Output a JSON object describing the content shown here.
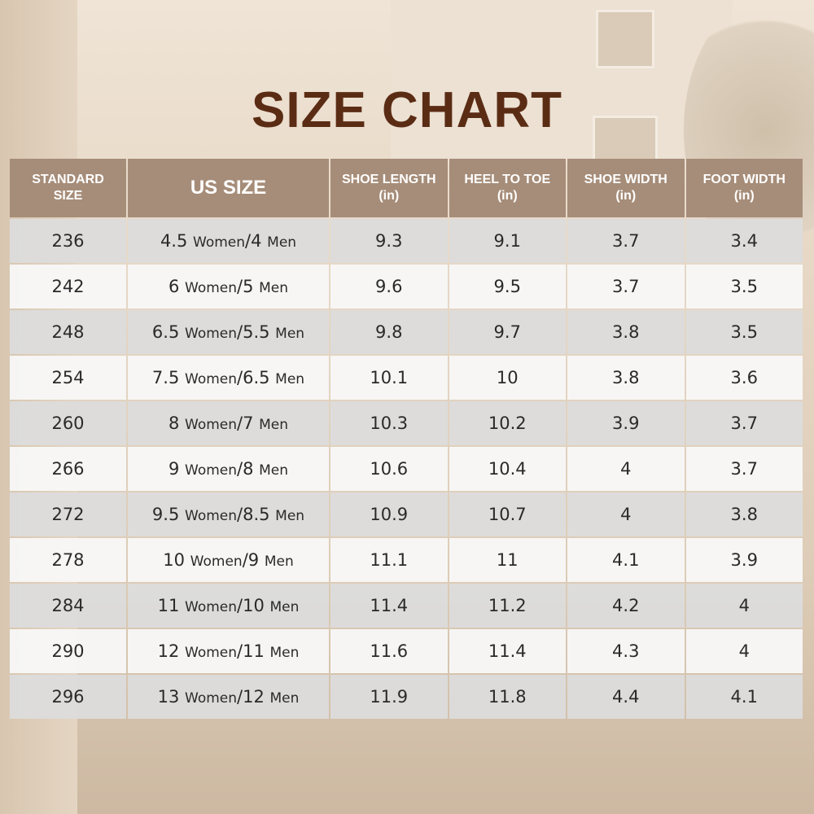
{
  "title": "SIZE CHART",
  "table": {
    "headers": [
      "STANDARD\nSIZE",
      "US SIZE",
      "SHOE LENGTH\n(in)",
      "HEEL TO TOE\n(in)",
      "SHOE WIDTH\n(in)",
      "FOOT WIDTH\n(in)"
    ],
    "rows": [
      [
        236,
        "4.5 Women/4 Men",
        9.3,
        9.1,
        3.7,
        3.4
      ],
      [
        242,
        "6 Women/5 Men",
        9.6,
        9.5,
        3.7,
        3.5
      ],
      [
        248,
        "6.5 Women/5.5 Men",
        9.8,
        9.7,
        3.8,
        3.5
      ],
      [
        254,
        "7.5 Women/6.5 Men",
        10.1,
        10,
        3.8,
        3.6
      ],
      [
        260,
        "8 Women/7 Men",
        10.3,
        10.2,
        3.9,
        3.7
      ],
      [
        266,
        "9 Women/8 Men",
        10.6,
        10.4,
        4,
        3.7
      ],
      [
        272,
        "9.5 Women/8.5 Men",
        10.9,
        10.7,
        4,
        3.8
      ],
      [
        278,
        "10 Women/9 Men",
        11.1,
        11,
        4.1,
        3.9
      ],
      [
        284,
        "11 Women/10 Men",
        11.4,
        11.2,
        4.2,
        4
      ],
      [
        290,
        "12 Women/11 Men",
        11.6,
        11.4,
        4.3,
        4
      ],
      [
        296,
        "13 Women/12 Men",
        11.9,
        11.8,
        4.4,
        4.1
      ]
    ]
  }
}
